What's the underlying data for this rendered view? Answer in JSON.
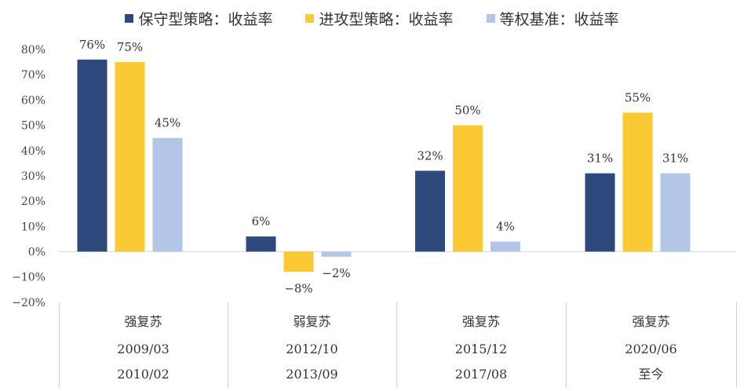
{
  "chart_data": {
    "type": "bar",
    "series": [
      {
        "name": "保守型策略：收益率",
        "color": "#2e4a7d",
        "values": [
          76,
          6,
          32,
          31
        ],
        "labels": [
          "76%",
          "6%",
          "32%",
          "31%"
        ]
      },
      {
        "name": "进攻型策略：收益率",
        "color": "#fbc933",
        "values": [
          75,
          -8,
          50,
          55
        ],
        "labels": [
          "75%",
          "-8%",
          "50%",
          "55%"
        ]
      },
      {
        "name": "等权基准：收益率",
        "color": "#b3c6e7",
        "values": [
          45,
          -2,
          4,
          31
        ],
        "labels": [
          "45%",
          "-2%",
          "4%",
          "31%"
        ]
      }
    ],
    "categories": [
      {
        "phase": "强复苏",
        "start": "2009/03",
        "end": "2010/02"
      },
      {
        "phase": "弱复苏",
        "start": "2012/10",
        "end": "2013/09"
      },
      {
        "phase": "强复苏",
        "start": "2015/12",
        "end": "2017/08"
      },
      {
        "phase": "强复苏",
        "start": "2020/06",
        "end": "至今"
      }
    ],
    "yticks": [
      "80%",
      "70%",
      "60%",
      "50%",
      "40%",
      "30%",
      "20%",
      "10%",
      "0%",
      "-10%",
      "-20%"
    ],
    "ylim": [
      -20,
      80
    ],
    "legend_position": "top"
  }
}
